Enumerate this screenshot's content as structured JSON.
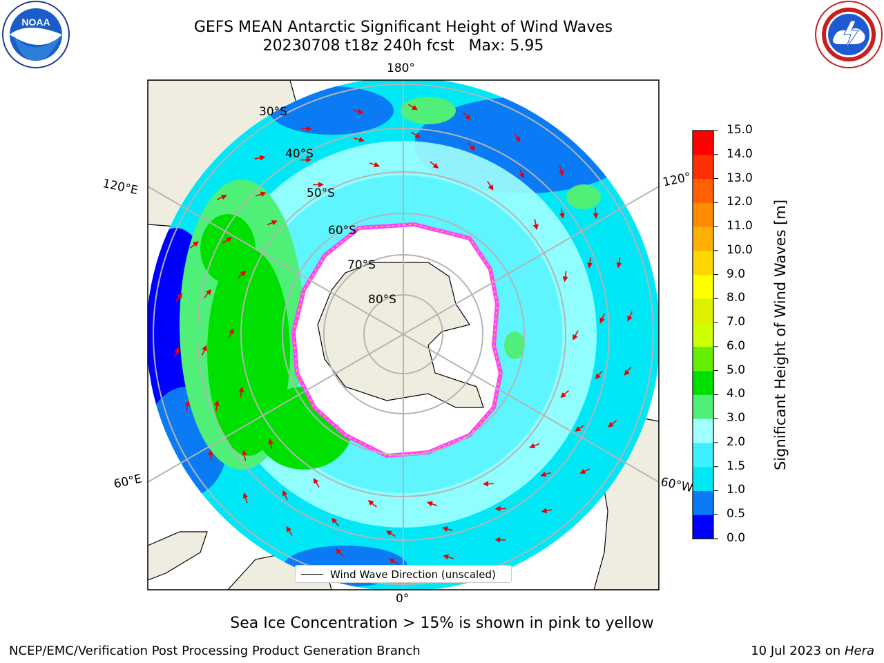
{
  "title": {
    "line1": "GEFS MEAN Antarctic Significant Height of Wind Waves",
    "line2": "20230708 t18z 240h fcst   Max: 5.95"
  },
  "longitude_labels": {
    "top": "180°",
    "bottom": "0°",
    "upper_left": "120°E",
    "upper_right": "120°",
    "lower_left": "60°E",
    "lower_right": "60°W"
  },
  "latitude_labels": [
    "30°S",
    "40°S",
    "50°S",
    "60°S",
    "70°S",
    "80°S"
  ],
  "colorbar": {
    "label": "Significant Height of Wind Waves [m]",
    "ticks": [
      "15.0",
      "14.0",
      "13.0",
      "12.0",
      "11.0",
      "10.0",
      "9.0",
      "8.0",
      "7.0",
      "6.0",
      "5.0",
      "4.0",
      "3.0",
      "2.0",
      "1.5",
      "1.0",
      "0.5",
      "0.0"
    ],
    "colors": [
      "#0000ff",
      "#0a7bf5",
      "#00e8f5",
      "#3ef0ff",
      "#a0ffff",
      "#50f078",
      "#00e000",
      "#66ee00",
      "#ccff00",
      "#dcf000",
      "#ffff00",
      "#ffd700",
      "#ffb000",
      "#ff8c00",
      "#ff6000",
      "#ff3000",
      "#ff0000"
    ]
  },
  "legend": {
    "label": "Wind Wave Direction (unscaled)"
  },
  "colors": {
    "land": "#efede0",
    "ice": "#ffffff",
    "ice_edge": "#ff44ff",
    "grid": "#b4b4b4",
    "arrow": "#ee0000"
  },
  "icons": {
    "left_logo": "noaa-logo",
    "right_logo": "nws-logo"
  },
  "footer": {
    "note": "Sea Ice Concentration > 15% is shown in pink to yellow",
    "credit": "NCEP/EMC/Verification Post Processing Product Generation Branch",
    "date": "10 Jul 2023 on ",
    "machine": "Hera"
  }
}
